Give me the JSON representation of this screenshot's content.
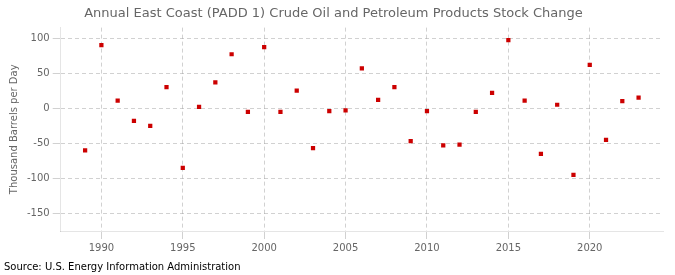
{
  "chart_data": {
    "type": "scatter",
    "title": "Annual East Coast (PADD 1) Crude Oil and Petroleum Products Stock Change",
    "ylabel": "Thousand Barrels per Day",
    "annotations": [
      "Source: U.S. Energy Information Administration"
    ],
    "x": [
      1989,
      1990,
      1991,
      1992,
      1993,
      1994,
      1995,
      1996,
      1997,
      1998,
      1999,
      2000,
      2001,
      2002,
      2003,
      2004,
      2005,
      2006,
      2007,
      2008,
      2009,
      2010,
      2011,
      2012,
      2013,
      2014,
      2015,
      2016,
      2017,
      2018,
      2019,
      2020,
      2021,
      2022,
      2023
    ],
    "values": [
      -60,
      90,
      11,
      -18,
      -25,
      30,
      -85,
      2,
      37,
      77,
      -5,
      87,
      -5,
      25,
      -57,
      -4,
      -3,
      57,
      12,
      30,
      -47,
      -4,
      -53,
      -52,
      -5,
      22,
      97,
      11,
      -65,
      5,
      -95,
      62,
      -45,
      10,
      15
    ],
    "color": "#cc0000",
    "marker": "square",
    "xlim": [
      1987.5,
      2024.5
    ],
    "xticks": [
      1990,
      1995,
      2000,
      2005,
      2010,
      2015,
      2020
    ],
    "ylim": [
      -175,
      115
    ],
    "yticks": [
      -150,
      -100,
      -50,
      0,
      50,
      100
    ],
    "grid": true
  }
}
